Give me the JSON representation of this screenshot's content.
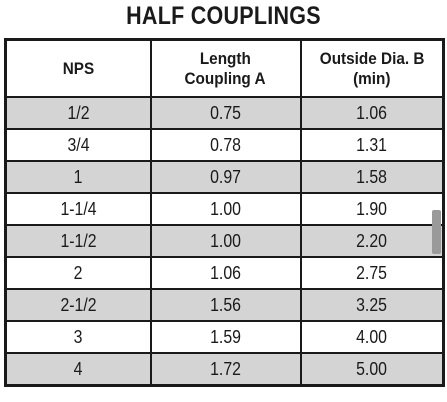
{
  "title": "HALF COUPLINGS",
  "table": {
    "headers": {
      "nps": "NPS",
      "length_line1": "Length",
      "length_line2": "Coupling A",
      "od_line1": "Outside Dia. B",
      "od_line2": "(min)"
    },
    "rows": [
      {
        "nps": "1/2",
        "length": "0.75",
        "od": "1.06"
      },
      {
        "nps": "3/4",
        "length": "0.78",
        "od": "1.31"
      },
      {
        "nps": "1",
        "length": "0.97",
        "od": "1.58"
      },
      {
        "nps": "1-1/4",
        "length": "1.00",
        "od": "1.90"
      },
      {
        "nps": "1-1/2",
        "length": "1.00",
        "od": "2.20"
      },
      {
        "nps": "2",
        "length": "1.06",
        "od": "2.75"
      },
      {
        "nps": "2-1/2",
        "length": "1.56",
        "od": "3.25"
      },
      {
        "nps": "3",
        "length": "1.59",
        "od": "4.00"
      },
      {
        "nps": "4",
        "length": "1.72",
        "od": "5.00"
      }
    ]
  },
  "colors": {
    "border": "#1a1a1a",
    "shaded_row": "#d4d4d4",
    "plain_row": "#ffffff"
  }
}
